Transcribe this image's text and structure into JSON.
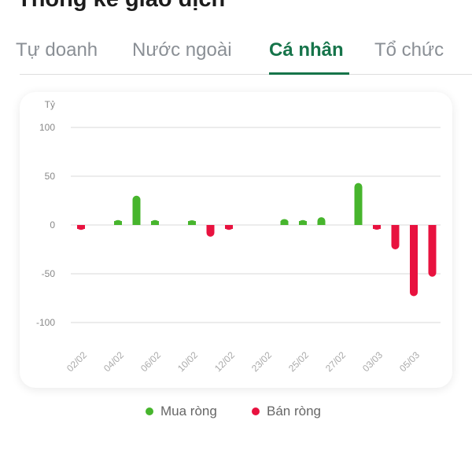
{
  "header": {
    "title": "Thống kê giao dịch"
  },
  "tabs": [
    {
      "label": "Tự doanh"
    },
    {
      "label": "Nước ngoài"
    },
    {
      "label": "Cá nhân",
      "active": true
    },
    {
      "label": "Tổ chức"
    }
  ],
  "colors": {
    "accent": "#16744a",
    "buy": "#47b52d",
    "sell": "#e8123f"
  },
  "chart_data": {
    "type": "bar",
    "ylabel": "Tỷ",
    "ylim": [
      -100,
      100
    ],
    "yticks": [
      100,
      50,
      0,
      -50,
      -100
    ],
    "grid": true,
    "legend_position": "bottom",
    "categories": [
      "02/02",
      "",
      "04/02",
      "",
      "06/02",
      "",
      "10/02",
      "",
      "12/02",
      "",
      "23/02",
      "",
      "25/02",
      "",
      "27/02",
      "",
      "03/03",
      "",
      "05/03",
      ""
    ],
    "values": [
      -5,
      null,
      5,
      30,
      5,
      null,
      4,
      -12,
      -5,
      null,
      null,
      6,
      5,
      8,
      null,
      43,
      -3,
      -25,
      -73,
      -53
    ],
    "series_names": {
      "positive": "Mua ròng",
      "negative": "Bán ròng"
    }
  }
}
